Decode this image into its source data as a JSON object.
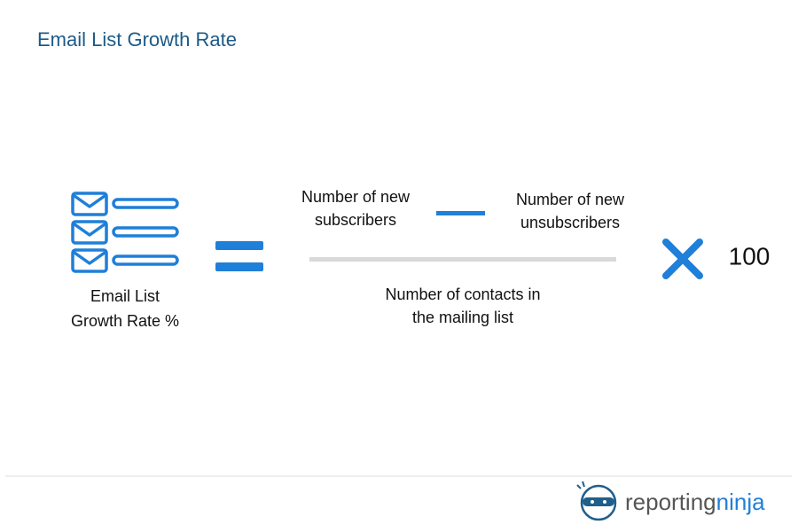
{
  "header": {
    "title": "Email List Growth Rate"
  },
  "formula": {
    "left_label": [
      "Email List",
      "Growth Rate %"
    ],
    "numerator_left": [
      "Number of new",
      "subscribers"
    ],
    "numerator_right": [
      "Number of new",
      "unsubscribers"
    ],
    "denominator": [
      "Number of contacts in",
      "the mailing list"
    ],
    "multiplier": 100
  },
  "footer": {
    "logo": {
      "part1": "reporting",
      "part2": "ninja"
    }
  }
}
